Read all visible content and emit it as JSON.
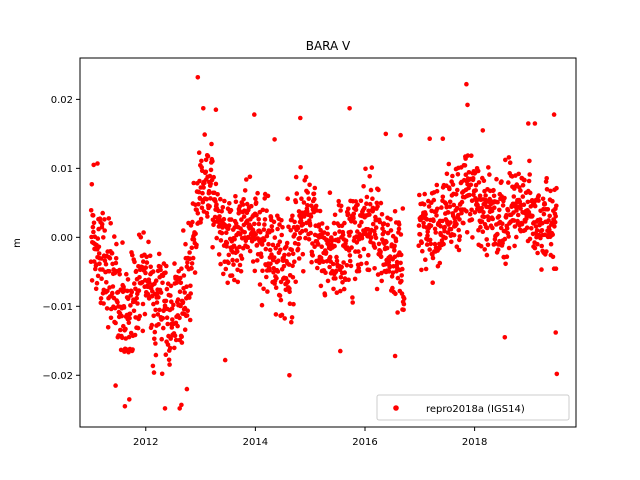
{
  "chart_data": {
    "type": "scatter",
    "title": "BARA V",
    "xlabel": "",
    "ylabel": "m",
    "xlim": [
      2010.8,
      2019.85
    ],
    "ylim": [
      -0.0275,
      0.026
    ],
    "xticks": [
      2012,
      2014,
      2016,
      2018
    ],
    "xtick_labels": [
      "2012",
      "2014",
      "2016",
      "2018"
    ],
    "yticks": [
      -0.02,
      -0.01,
      0.0,
      0.01,
      0.02
    ],
    "ytick_labels": [
      "−0.02",
      "−0.01",
      "0.00",
      "0.01",
      "0.02"
    ],
    "grid": false,
    "legend": {
      "location": "lower right",
      "entries": [
        "repro2018a (IGS14)"
      ]
    },
    "series": [
      {
        "name": "repro2018a (IGS14)",
        "color": "#ff0000",
        "marker": "circle",
        "x": [
          2011.0,
          2011.1,
          2011.2,
          2011.3,
          2011.4,
          2011.5,
          2011.6,
          2011.7,
          2011.8,
          2011.9,
          2012.0,
          2012.1,
          2012.2,
          2012.3,
          2012.4,
          2012.5,
          2012.6,
          2012.7,
          2012.8,
          2012.9,
          2013.0,
          2013.1,
          2013.2,
          2013.3,
          2013.4,
          2013.5,
          2013.6,
          2013.7,
          2013.8,
          2013.9,
          2014.0,
          2014.1,
          2014.2,
          2014.3,
          2014.4,
          2014.5,
          2014.6,
          2014.7,
          2014.8,
          2014.9,
          2015.0,
          2015.1,
          2015.2,
          2015.3,
          2015.4,
          2015.5,
          2015.6,
          2015.7,
          2015.8,
          2015.9,
          2016.0,
          2016.1,
          2016.2,
          2016.3,
          2016.4,
          2016.5,
          2016.6,
          2016.7,
          2017.0,
          2017.1,
          2017.2,
          2017.3,
          2017.4,
          2017.5,
          2017.6,
          2017.7,
          2017.8,
          2017.9,
          2018.0,
          2018.1,
          2018.2,
          2018.3,
          2018.4,
          2018.5,
          2018.6,
          2018.7,
          2018.8,
          2018.9,
          2019.0,
          2019.1,
          2019.2,
          2019.3,
          2019.4,
          2019.5
        ],
        "y": [
          0.001,
          -0.002,
          -0.004,
          -0.005,
          -0.006,
          -0.008,
          -0.009,
          -0.01,
          -0.008,
          -0.007,
          -0.006,
          -0.008,
          -0.009,
          -0.01,
          -0.011,
          -0.012,
          -0.01,
          -0.008,
          -0.004,
          0.002,
          0.007,
          0.008,
          0.006,
          0.003,
          0.001,
          0.0,
          -0.001,
          0.0,
          0.001,
          0.002,
          0.001,
          0.0,
          -0.001,
          -0.002,
          -0.003,
          -0.004,
          -0.003,
          -0.001,
          0.002,
          0.003,
          0.003,
          0.001,
          -0.001,
          -0.002,
          -0.003,
          -0.003,
          -0.002,
          -0.001,
          0.0,
          0.001,
          0.002,
          0.002,
          0.001,
          0.0,
          -0.001,
          -0.003,
          -0.004,
          -0.005,
          0.002,
          0.002,
          0.001,
          0.001,
          0.002,
          0.003,
          0.004,
          0.005,
          0.006,
          0.007,
          0.006,
          0.005,
          0.004,
          0.004,
          0.003,
          0.003,
          0.004,
          0.005,
          0.005,
          0.004,
          0.004,
          0.003,
          0.002,
          0.002,
          0.002,
          0.003
        ],
        "spread": [
          0.005,
          0.005,
          0.006,
          0.006,
          0.006,
          0.006,
          0.006,
          0.006,
          0.006,
          0.006,
          0.006,
          0.006,
          0.006,
          0.006,
          0.006,
          0.006,
          0.006,
          0.006,
          0.006,
          0.006,
          0.005,
          0.005,
          0.005,
          0.005,
          0.005,
          0.005,
          0.005,
          0.005,
          0.005,
          0.005,
          0.005,
          0.005,
          0.005,
          0.005,
          0.005,
          0.006,
          0.006,
          0.006,
          0.005,
          0.005,
          0.005,
          0.005,
          0.005,
          0.005,
          0.005,
          0.006,
          0.006,
          0.006,
          0.006,
          0.005,
          0.005,
          0.005,
          0.005,
          0.005,
          0.005,
          0.005,
          0.006,
          0.006,
          0.005,
          0.005,
          0.005,
          0.005,
          0.005,
          0.005,
          0.005,
          0.005,
          0.005,
          0.005,
          0.005,
          0.005,
          0.005,
          0.005,
          0.005,
          0.005,
          0.005,
          0.005,
          0.005,
          0.005,
          0.005,
          0.005,
          0.005,
          0.005,
          0.005,
          0.005
        ],
        "gaps": [
          [
            2016.72,
            2016.98
          ]
        ],
        "outliers": [
          [
            2011.05,
            0.0105
          ],
          [
            2011.12,
            0.0107
          ],
          [
            2011.45,
            -0.0215
          ],
          [
            2011.62,
            -0.0245
          ],
          [
            2011.7,
            -0.0235
          ],
          [
            2012.35,
            -0.0248
          ],
          [
            2012.62,
            -0.0248
          ],
          [
            2012.65,
            -0.0243
          ],
          [
            2012.75,
            -0.022
          ],
          [
            2012.95,
            0.0232
          ],
          [
            2013.05,
            0.0187
          ],
          [
            2013.28,
            0.0185
          ],
          [
            2013.45,
            -0.0178
          ],
          [
            2013.98,
            0.0178
          ],
          [
            2014.35,
            0.0142
          ],
          [
            2014.62,
            -0.02
          ],
          [
            2014.82,
            0.0173
          ],
          [
            2015.72,
            0.0187
          ],
          [
            2015.55,
            -0.0165
          ],
          [
            2016.38,
            0.015
          ],
          [
            2016.55,
            -0.0172
          ],
          [
            2017.85,
            0.0222
          ],
          [
            2017.87,
            0.0192
          ],
          [
            2018.55,
            -0.0145
          ],
          [
            2018.15,
            0.0155
          ],
          [
            2019.5,
            -0.0198
          ],
          [
            2019.48,
            -0.0138
          ],
          [
            2019.45,
            0.0178
          ],
          [
            2019.1,
            0.0165
          ],
          [
            2018.98,
            0.0165
          ],
          [
            2016.65,
            0.0148
          ],
          [
            2017.18,
            0.0143
          ],
          [
            2017.42,
            0.0143
          ]
        ]
      }
    ]
  }
}
